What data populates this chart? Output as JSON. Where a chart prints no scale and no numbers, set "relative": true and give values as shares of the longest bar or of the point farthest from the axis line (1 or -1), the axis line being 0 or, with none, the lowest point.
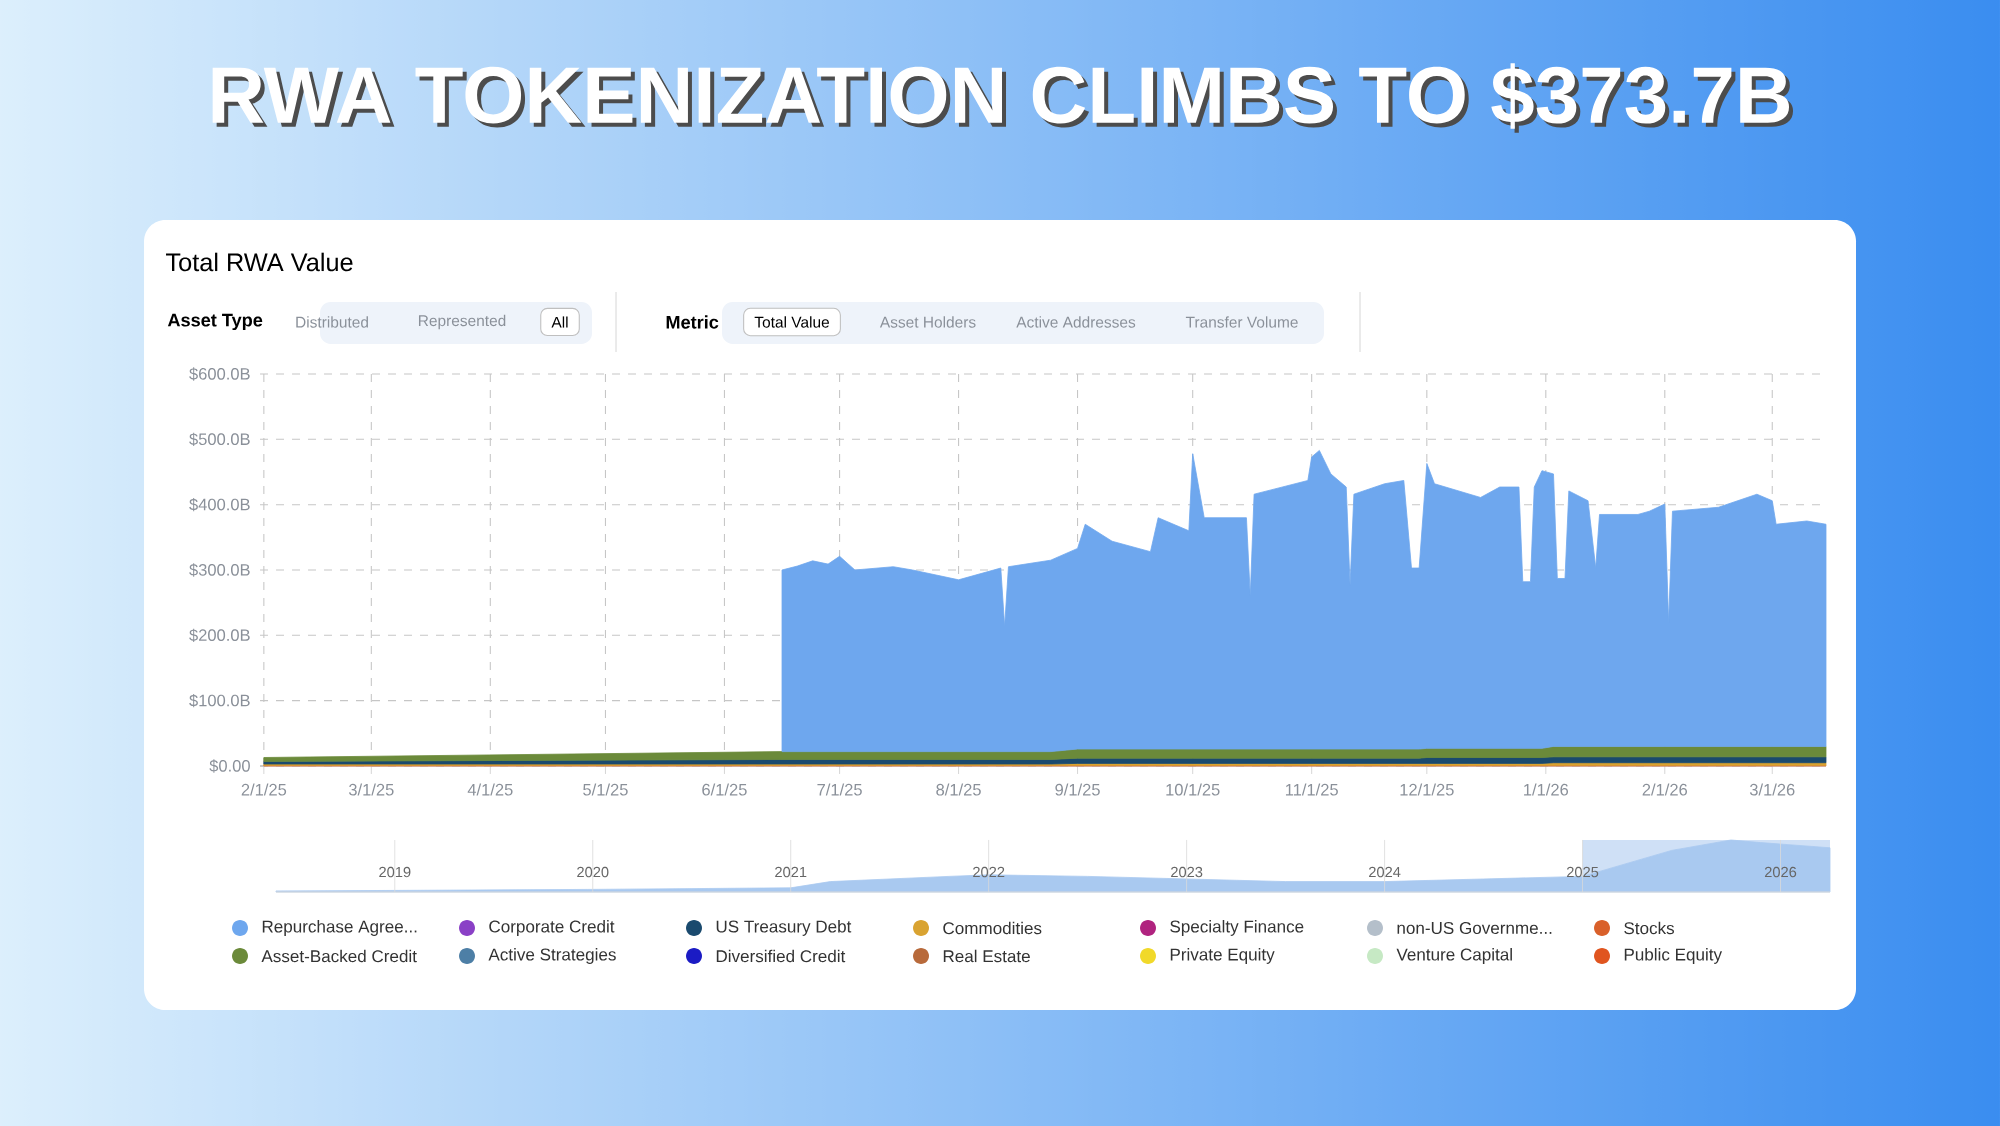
{
  "chart_data": [
    {
      "type": "area",
      "title": "RWA TOKENIZATION CLIMBS TO $373.7B",
      "subtitle": "Total RWA Value",
      "annotations": [
        "Asset Type",
        "Distributed",
        "Represented",
        "All",
        "Metric",
        "Total Value",
        "Asset Holders",
        "Active Addresses",
        "Transfer Volume"
      ],
      "stacked": true,
      "grid": true,
      "legend": "bottom",
      "xlim": [
        "2025-01-31",
        "2026-03-15"
      ],
      "xticks": [
        {
          "value": "2025-02-01",
          "label": "2/1/25"
        },
        {
          "value": "2025-03-01",
          "label": "3/1/25"
        },
        {
          "value": "2025-04-01",
          "label": "4/1/25"
        },
        {
          "value": "2025-05-01",
          "label": "5/1/25"
        },
        {
          "value": "2025-06-01",
          "label": "6/1/25"
        },
        {
          "value": "2025-07-01",
          "label": "7/1/25"
        },
        {
          "value": "2025-08-01",
          "label": "8/1/25"
        },
        {
          "value": "2025-09-01",
          "label": "9/1/25"
        },
        {
          "value": "2025-10-01",
          "label": "10/1/25"
        },
        {
          "value": "2025-11-01",
          "label": "11/1/25"
        },
        {
          "value": "2025-12-01",
          "label": "12/1/25"
        },
        {
          "value": "2026-01-01",
          "label": "1/1/26"
        },
        {
          "value": "2026-02-01",
          "label": "2/1/26"
        },
        {
          "value": "2026-03-01",
          "label": "3/1/26"
        }
      ],
      "ylim": [
        0,
        600
      ],
      "yticks": [
        {
          "value": 0,
          "label": "$0.00"
        },
        {
          "value": 100,
          "label": "$100.0B"
        },
        {
          "value": 200,
          "label": "$200.0B"
        },
        {
          "value": 300,
          "label": "$300.0B"
        },
        {
          "value": 400,
          "label": "$400.0B"
        },
        {
          "value": 500,
          "label": "$500.0B"
        },
        {
          "value": 600,
          "label": "$600.0B"
        }
      ],
      "x": [
        "2025-02-01",
        "2025-06-16",
        "2025-06-20",
        "2025-06-24",
        "2025-06-28",
        "2025-07-01",
        "2025-07-05",
        "2025-07-15",
        "2025-07-20",
        "2025-08-01",
        "2025-08-12",
        "2025-08-13",
        "2025-08-14",
        "2025-08-25",
        "2025-09-01",
        "2025-09-03",
        "2025-09-10",
        "2025-09-20",
        "2025-09-22",
        "2025-09-30",
        "2025-10-01",
        "2025-10-04",
        "2025-10-15",
        "2025-10-16",
        "2025-10-17",
        "2025-10-31",
        "2025-11-01",
        "2025-11-03",
        "2025-11-06",
        "2025-11-10",
        "2025-11-11",
        "2025-11-12",
        "2025-11-20",
        "2025-11-25",
        "2025-11-27",
        "2025-11-29",
        "2025-12-01",
        "2025-12-03",
        "2025-12-15",
        "2025-12-20",
        "2025-12-25",
        "2025-12-26",
        "2025-12-28",
        "2025-12-29",
        "2025-12-31",
        "2026-01-03",
        "2026-01-04",
        "2026-01-06",
        "2026-01-07",
        "2026-01-12",
        "2026-01-14",
        "2026-01-15",
        "2026-01-25",
        "2026-01-28",
        "2026-02-01",
        "2026-02-02",
        "2026-02-03",
        "2026-02-15",
        "2026-02-25",
        "2026-03-01",
        "2026-03-02",
        "2026-03-10",
        "2026-03-15"
      ],
      "series": [
        {
          "name": "Public Equity",
          "color": "#e0551f",
          "values": [
            null,
            null,
            null,
            null,
            null,
            null,
            null,
            null,
            null,
            null,
            null,
            null,
            null,
            null,
            null,
            null,
            null,
            null,
            null,
            null,
            null,
            null,
            null,
            null,
            null,
            null,
            null,
            null,
            null,
            null,
            null,
            null,
            null,
            null,
            null,
            null,
            null,
            null,
            null,
            null,
            null,
            null,
            null,
            null,
            null,
            null,
            null,
            null,
            null,
            null,
            null,
            null,
            null,
            null,
            null,
            null,
            null,
            null,
            null,
            null,
            null,
            null,
            null
          ]
        },
        {
          "name": "Stocks",
          "color": "#d9602a",
          "values": [
            1,
            1,
            1,
            1,
            1,
            1,
            1,
            1,
            1,
            1,
            1,
            1,
            1,
            1,
            1,
            1,
            1,
            1,
            1,
            1,
            1,
            1,
            1,
            1,
            1,
            1,
            1,
            1,
            1,
            1,
            1,
            1,
            1,
            1,
            1,
            1,
            1,
            1,
            1,
            1,
            1,
            1,
            1,
            1,
            1,
            1,
            1,
            1,
            1,
            1,
            1,
            1,
            1,
            1,
            1,
            1,
            1,
            1,
            1,
            1,
            1,
            1,
            1
          ]
        },
        {
          "name": "Venture Capital",
          "color": "#c6e9c4",
          "values": [
            null,
            null,
            null,
            null,
            null,
            null,
            null,
            null,
            null,
            null,
            null,
            null,
            null,
            null,
            null,
            null,
            null,
            null,
            null,
            null,
            null,
            null,
            null,
            null,
            null,
            null,
            null,
            null,
            null,
            null,
            null,
            null,
            null,
            null,
            null,
            null,
            null,
            null,
            null,
            null,
            null,
            null,
            null,
            null,
            null,
            null,
            null,
            null,
            null,
            null,
            null,
            null,
            null,
            null,
            null,
            null,
            null,
            null,
            null,
            null,
            null,
            null,
            null
          ]
        },
        {
          "name": "non-US Governme...",
          "color": "#b4bfca",
          "values": [
            null,
            null,
            null,
            null,
            null,
            null,
            null,
            null,
            null,
            null,
            null,
            null,
            null,
            null,
            null,
            null,
            null,
            null,
            null,
            null,
            null,
            null,
            null,
            null,
            null,
            null,
            null,
            null,
            null,
            null,
            null,
            null,
            null,
            null,
            null,
            null,
            null,
            null,
            null,
            null,
            null,
            null,
            null,
            null,
            null,
            null,
            null,
            null,
            null,
            null,
            null,
            null,
            null,
            null,
            null,
            null,
            null,
            null,
            null,
            null,
            null,
            null,
            null
          ]
        },
        {
          "name": "Private Equity",
          "color": "#f1d92a",
          "values": [
            null,
            null,
            null,
            null,
            null,
            null,
            null,
            null,
            null,
            null,
            null,
            null,
            null,
            null,
            null,
            null,
            null,
            null,
            null,
            null,
            null,
            null,
            null,
            null,
            null,
            null,
            null,
            null,
            null,
            null,
            null,
            null,
            null,
            null,
            null,
            null,
            null,
            null,
            null,
            null,
            null,
            null,
            null,
            null,
            null,
            null,
            null,
            null,
            null,
            null,
            null,
            null,
            null,
            null,
            null,
            null,
            null,
            null,
            null,
            null,
            null,
            null,
            null
          ]
        },
        {
          "name": "Specialty Finance",
          "color": "#b0237f",
          "values": [
            null,
            null,
            null,
            null,
            null,
            null,
            null,
            null,
            null,
            null,
            null,
            null,
            null,
            null,
            null,
            null,
            null,
            null,
            null,
            null,
            null,
            null,
            null,
            null,
            null,
            null,
            null,
            null,
            null,
            null,
            null,
            null,
            null,
            null,
            null,
            null,
            null,
            null,
            null,
            null,
            null,
            null,
            null,
            null,
            null,
            null,
            null,
            null,
            null,
            null,
            null,
            null,
            null,
            null,
            null,
            null,
            null,
            null,
            null,
            null,
            null,
            null,
            null
          ]
        },
        {
          "name": "Real Estate",
          "color": "#b86a3b",
          "values": [
            null,
            null,
            null,
            null,
            null,
            null,
            null,
            null,
            null,
            null,
            null,
            null,
            null,
            null,
            null,
            null,
            null,
            null,
            null,
            null,
            null,
            null,
            null,
            null,
            null,
            null,
            null,
            null,
            null,
            null,
            null,
            null,
            null,
            null,
            null,
            null,
            null,
            null,
            null,
            null,
            null,
            null,
            null,
            null,
            null,
            null,
            null,
            null,
            null,
            null,
            null,
            null,
            null,
            null,
            null,
            null,
            null,
            null,
            null,
            null,
            null,
            null,
            null
          ]
        },
        {
          "name": "Commodities",
          "color": "#d9a331",
          "values": [
            2,
            2,
            2,
            2,
            2,
            2,
            2,
            2,
            2,
            2,
            2,
            2,
            2,
            2,
            3,
            3,
            3,
            3,
            3,
            3,
            3,
            3,
            3,
            3,
            3,
            3,
            3,
            3,
            3,
            3,
            3,
            3,
            3,
            3,
            3,
            3,
            3,
            3,
            3,
            3,
            3,
            3,
            3,
            3,
            3,
            4,
            4,
            4,
            4,
            4,
            4,
            4,
            4,
            4,
            4,
            4,
            4,
            4,
            4,
            4,
            4,
            4,
            4
          ]
        },
        {
          "name": "Diversified Credit",
          "color": "#1b1bc4",
          "values": [
            null,
            null,
            null,
            null,
            null,
            null,
            null,
            null,
            null,
            null,
            null,
            null,
            null,
            null,
            null,
            null,
            null,
            null,
            null,
            null,
            null,
            null,
            null,
            null,
            null,
            null,
            null,
            null,
            null,
            null,
            null,
            null,
            null,
            null,
            null,
            null,
            null,
            null,
            null,
            null,
            null,
            null,
            null,
            null,
            null,
            null,
            null,
            null,
            null,
            null,
            null,
            null,
            null,
            null,
            null,
            null,
            null,
            null,
            null,
            null,
            null,
            null,
            null
          ]
        },
        {
          "name": "US Treasury Debt",
          "color": "#1a4a6e",
          "values": [
            4,
            7,
            7,
            7,
            7,
            7,
            7,
            7,
            7,
            7,
            7,
            7,
            7,
            7,
            8,
            8,
            8,
            8,
            8,
            8,
            8,
            8,
            8,
            8,
            8,
            8,
            8,
            8,
            8,
            8,
            8,
            8,
            8,
            8,
            8,
            8,
            9,
            9,
            9,
            9,
            9,
            9,
            9,
            9,
            9,
            9,
            9,
            9,
            9,
            9,
            9,
            9,
            9,
            9,
            9,
            9,
            9,
            9,
            9,
            9,
            9,
            9,
            9
          ]
        },
        {
          "name": "Active Strategies",
          "color": "#4d7fa6",
          "values": [
            null,
            null,
            null,
            null,
            null,
            null,
            null,
            null,
            null,
            null,
            null,
            null,
            null,
            null,
            null,
            null,
            null,
            null,
            null,
            null,
            null,
            null,
            null,
            null,
            null,
            null,
            null,
            null,
            null,
            null,
            null,
            null,
            null,
            null,
            null,
            null,
            null,
            null,
            null,
            null,
            null,
            null,
            null,
            null,
            null,
            null,
            null,
            null,
            null,
            null,
            null,
            null,
            null,
            null,
            null,
            null,
            null,
            null,
            null,
            null,
            null,
            null,
            null
          ]
        },
        {
          "name": "Corporate Credit",
          "color": "#8a40c6",
          "values": [
            null,
            null,
            null,
            null,
            null,
            null,
            null,
            null,
            null,
            null,
            null,
            null,
            null,
            null,
            null,
            null,
            null,
            null,
            null,
            null,
            null,
            null,
            null,
            null,
            null,
            null,
            null,
            null,
            null,
            null,
            null,
            null,
            null,
            null,
            null,
            null,
            null,
            null,
            null,
            null,
            null,
            null,
            null,
            null,
            null,
            null,
            null,
            null,
            null,
            null,
            null,
            null,
            null,
            null,
            null,
            null,
            null,
            null,
            null,
            null,
            null,
            null,
            null
          ]
        },
        {
          "name": "Asset-Backed Credit",
          "color": "#6b8a3a",
          "values": [
            6,
            12,
            12,
            12,
            12,
            12,
            12,
            12,
            12,
            12,
            12,
            12,
            12,
            12,
            14,
            14,
            14,
            14,
            14,
            14,
            14,
            14,
            14,
            14,
            14,
            14,
            14,
            14,
            14,
            14,
            14,
            14,
            14,
            14,
            14,
            14,
            14,
            14,
            14,
            14,
            14,
            14,
            14,
            14,
            14,
            16,
            16,
            16,
            16,
            16,
            16,
            16,
            16,
            16,
            16,
            16,
            16,
            16,
            16,
            16,
            16,
            16,
            16
          ]
        },
        {
          "name": "Repurchase Agree...",
          "color": "#6ea7ee",
          "values": [
            null,
            278,
            284,
            292,
            287,
            299,
            278,
            283,
            278,
            263,
            281,
            192,
            283,
            293,
            307,
            344,
            318,
            302,
            354,
            334,
            452,
            354,
            354,
            235,
            390,
            411,
            447,
            457,
            421,
            401,
            251,
            390,
            406,
            411,
            277,
            277,
            436,
            405,
            384,
            400,
            400,
            255,
            255,
            400,
            425,
            417,
            257,
            257,
            391,
            376,
            273,
            355,
            355,
            360,
            371,
            190,
            360,
            366,
            386,
            376,
            340,
            345,
            340
          ]
        }
      ]
    },
    {
      "type": "area",
      "relative": true,
      "color": "#a9c9f0",
      "grid": "x",
      "tick_labels": "x",
      "xlim": [
        2018.4,
        2026.25
      ],
      "xticks": [
        {
          "value": 2019,
          "label": "2019"
        },
        {
          "value": 2020,
          "label": "2020"
        },
        {
          "value": 2021,
          "label": "2021"
        },
        {
          "value": 2022,
          "label": "2022"
        },
        {
          "value": 2023,
          "label": "2023"
        },
        {
          "value": 2024,
          "label": "2024"
        },
        {
          "value": 2025,
          "label": "2025"
        },
        {
          "value": 2026,
          "label": "2026"
        }
      ],
      "bands": [
        {
          "axis": "x",
          "from": 2025,
          "to": 2026.25,
          "color": "#cfe0f6"
        }
      ],
      "x": [
        2018.4,
        2019,
        2020,
        2021,
        2021.2,
        2021.8,
        2022,
        2022.5,
        2023,
        2023.5,
        2024,
        2024.5,
        2025,
        2025.45,
        2025.75,
        2025.9,
        2026.25
      ],
      "values": [
        0.02,
        0.03,
        0.05,
        0.08,
        0.2,
        0.3,
        0.33,
        0.3,
        0.25,
        0.2,
        0.2,
        0.25,
        0.3,
        0.8,
        1,
        0.95,
        0.85
      ]
    }
  ]
}
